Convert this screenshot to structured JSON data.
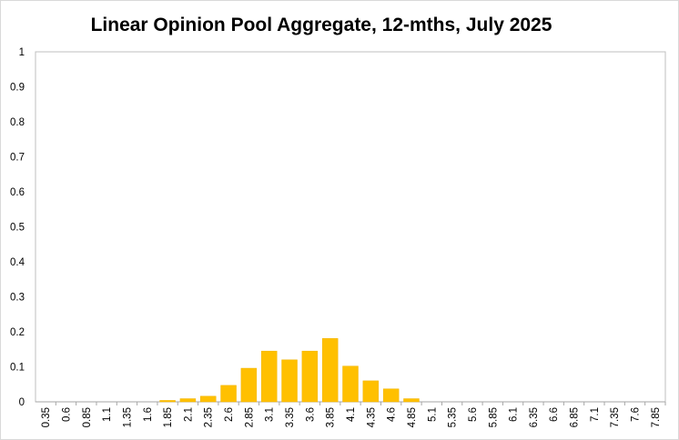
{
  "chart_data": {
    "type": "bar",
    "title": "Linear Opinion Pool Aggregate, 12-mths, July 2025",
    "xlabel": "",
    "ylabel": "",
    "ylim": [
      0,
      1
    ],
    "yticks": [
      "0",
      "0.1",
      "0.2",
      "0.3",
      "0.4",
      "0.5",
      "0.6",
      "0.7",
      "0.8",
      "0.9",
      "1"
    ],
    "categories": [
      "0.35",
      "0.6",
      "0.85",
      "1.1",
      "1.35",
      "1.6",
      "1.85",
      "2.1",
      "2.35",
      "2.6",
      "2.85",
      "3.1",
      "3.35",
      "3.6",
      "3.85",
      "4.1",
      "4.35",
      "4.6",
      "4.85",
      "5.1",
      "5.35",
      "5.6",
      "5.85",
      "6.1",
      "6.35",
      "6.6",
      "6.85",
      "7.1",
      "7.35",
      "7.6",
      "7.85"
    ],
    "values": [
      0,
      0,
      0,
      0,
      0,
      0,
      0.004,
      0.009,
      0.016,
      0.047,
      0.096,
      0.145,
      0.12,
      0.145,
      0.181,
      0.102,
      0.06,
      0.037,
      0.009,
      0,
      0,
      0,
      0,
      0,
      0,
      0,
      0,
      0,
      0,
      0,
      0
    ],
    "bar_color": "#FFC000",
    "grid": false,
    "legend": "none"
  }
}
